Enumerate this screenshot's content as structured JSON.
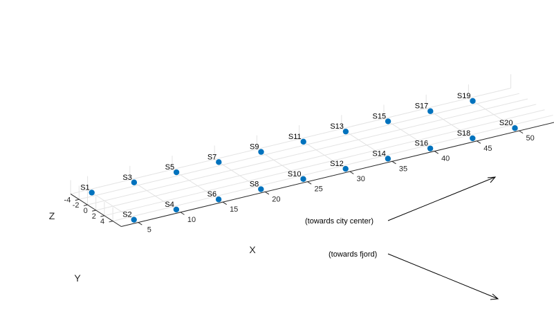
{
  "chart_data": {
    "type": "scatter",
    "title": "",
    "xlabel": "X",
    "ylabel": "Y",
    "zlabel": "Z",
    "xlim": [
      3,
      55
    ],
    "ylim": [
      -6,
      6
    ],
    "grid": true,
    "x_ticks": [
      5,
      10,
      15,
      20,
      25,
      30,
      35,
      40,
      45,
      50
    ],
    "y_ticks": [
      -4,
      -2,
      0,
      2,
      4
    ],
    "marker_color": "#0072BD",
    "points": [
      {
        "label": "S1",
        "x": 5,
        "y": -5
      },
      {
        "label": "S2",
        "x": 5,
        "y": 5
      },
      {
        "label": "S3",
        "x": 10,
        "y": -5
      },
      {
        "label": "S4",
        "x": 10,
        "y": 5
      },
      {
        "label": "S5",
        "x": 15,
        "y": -5
      },
      {
        "label": "S6",
        "x": 15,
        "y": 5
      },
      {
        "label": "S7",
        "x": 20,
        "y": -5
      },
      {
        "label": "S8",
        "x": 20,
        "y": 5
      },
      {
        "label": "S9",
        "x": 25,
        "y": -5
      },
      {
        "label": "S10",
        "x": 25,
        "y": 5
      },
      {
        "label": "S11",
        "x": 30,
        "y": -5
      },
      {
        "label": "S12",
        "x": 30,
        "y": 5
      },
      {
        "label": "S13",
        "x": 35,
        "y": -5
      },
      {
        "label": "S14",
        "x": 35,
        "y": 5
      },
      {
        "label": "S15",
        "x": 40,
        "y": -5
      },
      {
        "label": "S16",
        "x": 40,
        "y": 5
      },
      {
        "label": "S17",
        "x": 45,
        "y": -5
      },
      {
        "label": "S18",
        "x": 45,
        "y": 5
      },
      {
        "label": "S19",
        "x": 50,
        "y": -5
      },
      {
        "label": "S20",
        "x": 50,
        "y": 5
      }
    ],
    "annotations": [
      {
        "text": "(towards city center)"
      },
      {
        "text": "(towards fjord)"
      }
    ]
  }
}
